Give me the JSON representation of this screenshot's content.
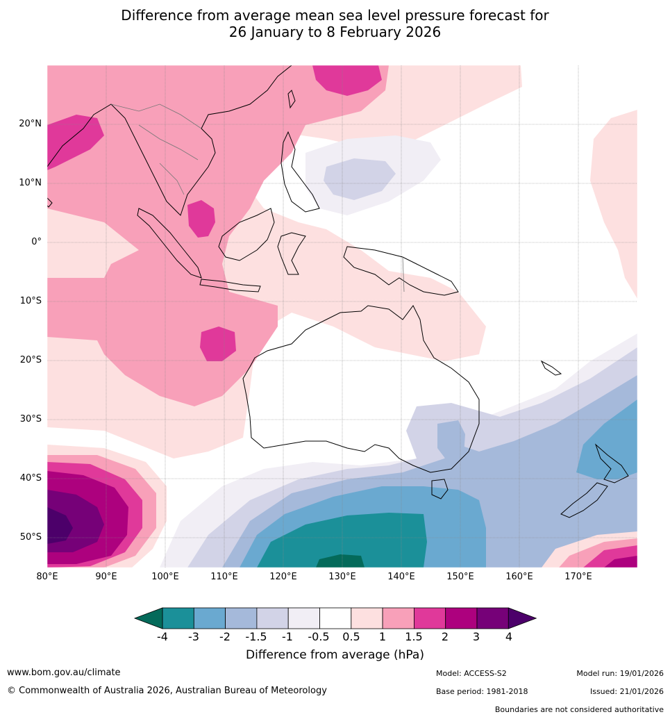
{
  "title": {
    "line1": "Difference from average mean sea level pressure forecast for",
    "line2": "26 January to 8 February 2026"
  },
  "axes": {
    "lat_labels": [
      "20°N",
      "10°N",
      "0°",
      "10°S",
      "20°S",
      "30°S",
      "40°S",
      "50°S"
    ],
    "lon_labels": [
      "80°E",
      "90°E",
      "100°E",
      "110°E",
      "120°E",
      "130°E",
      "140°E",
      "150°E",
      "160°E",
      "170°E"
    ]
  },
  "colorbar": {
    "title": "Difference from average (hPa)",
    "ticks": [
      "-4",
      "-3",
      "-2",
      "-1.5",
      "-1",
      "-0.5",
      "0.5",
      "1",
      "1.5",
      "2",
      "3",
      "4"
    ],
    "colors": [
      "#1b9099",
      "#6aa9d0",
      "#a5b9da",
      "#d2d3e7",
      "#f1eef5",
      "#ffffff",
      "#fde0e0",
      "#f8a0b9",
      "#e0399a",
      "#ad017e",
      "#760178"
    ],
    "low_extend": "#046a5a",
    "high_extend": "#4c006a"
  },
  "footer": {
    "website": "www.bom.gov.au/climate",
    "copyright": "© Commonwealth of Australia 2026, Australian Bureau of Meteorology",
    "model": "Model: ACCESS-S2",
    "base_period": "Base period: 1981-2018",
    "model_run": "Model run: 19/01/2026",
    "issued": "Issued: 21/01/2026",
    "disclaimer": "Boundaries are not considered authoritative"
  }
}
